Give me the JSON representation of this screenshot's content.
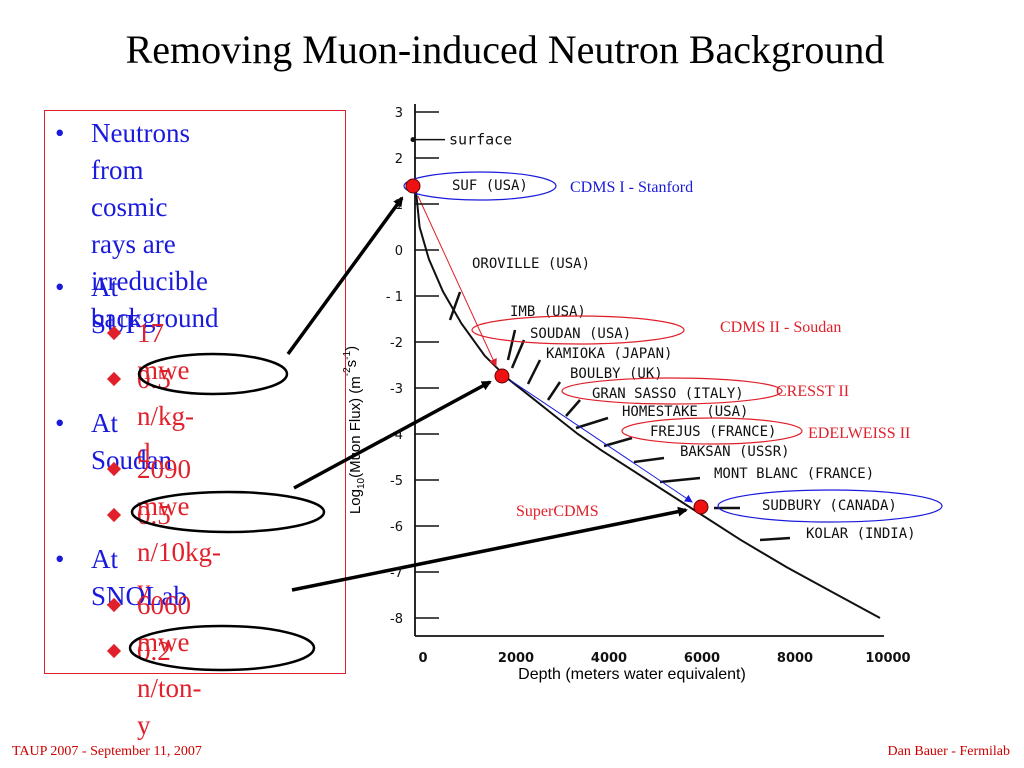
{
  "slide": {
    "title": "Removing Muon-induced Neutron Background",
    "footer_left": "TAUP 2007 - September 11, 2007",
    "footer_right": "Dan Bauer - Fermilab"
  },
  "bullets": [
    {
      "level": 1,
      "text": "Neutrons from\ncosmic rays are\nirreducible\nbackground",
      "color": "#1a1adc"
    },
    {
      "level": 1,
      "text": "At SUF",
      "color": "#1a1adc"
    },
    {
      "level": 2,
      "text": "17 mwe",
      "color": "#e0202a"
    },
    {
      "level": 2,
      "text": "0.5 n/kg-d",
      "color": "#e0202a",
      "circled": true
    },
    {
      "level": 1,
      "text": "At Soudan",
      "color": "#1a1adc"
    },
    {
      "level": 2,
      "text": "2090 mwe",
      "color": "#e0202a"
    },
    {
      "level": 2,
      "text": "0.5 n/10kg-y",
      "color": "#e0202a",
      "circled": true
    },
    {
      "level": 1,
      "text": "At SNOLab",
      "color": "#1a1adc"
    },
    {
      "level": 2,
      "text": "6060 mwe",
      "color": "#e0202a"
    },
    {
      "level": 2,
      "text": "0.2 n/ton-y",
      "color": "#e0202a",
      "circled": true
    }
  ],
  "chart_data": {
    "type": "line",
    "xlabel": "Depth (meters water equivalent)",
    "ylabel": "Log10(Muon Flux) (m-2s-1)",
    "xlim": [
      0,
      10000
    ],
    "ylim": [
      -8,
      3
    ],
    "x_ticks": [
      "0",
      "2000",
      "4000",
      "6000",
      "8000",
      "10000"
    ],
    "y_ticks": [
      "3",
      "2",
      "1",
      "0",
      "- 1",
      "-2",
      "-3",
      "-4",
      "-5",
      "-6",
      "-7",
      "-8"
    ],
    "series": [
      {
        "x": [
          0,
          100,
          300,
          600,
          1000,
          1500,
          2000,
          2500,
          3000,
          3500,
          4000,
          5000,
          6000,
          7000,
          8000,
          9000,
          10000
        ],
        "y": [
          1.5,
          0.5,
          -0.2,
          -0.9,
          -1.6,
          -2.3,
          -2.8,
          -3.2,
          -3.6,
          -4.0,
          -4.35,
          -5.0,
          -5.65,
          -6.3,
          -6.9,
          -7.45,
          -8.0
        ]
      }
    ],
    "surface_label": "surface",
    "sites": [
      {
        "name": "SUF (USA)",
        "x": 0,
        "y": 1.5,
        "highlighted": true
      },
      {
        "name": "OROVILLE (USA)",
        "x": 900,
        "y": -0.9
      },
      {
        "name": "IMB (USA)",
        "x": 1600,
        "y": -2.0
      },
      {
        "name": "SOUDAN (USA)",
        "x": 2000,
        "y": -2.3,
        "highlighted": true
      },
      {
        "name": "KAMIOKA (JAPAN)",
        "x": 2400,
        "y": -2.6
      },
      {
        "name": "BOULBY (UK)",
        "x": 2800,
        "y": -3.0
      },
      {
        "name": "GRAN SASSO (ITALY)",
        "x": 3100,
        "y": -3.2,
        "highlighted": true
      },
      {
        "name": "HOMESTAKE (USA)",
        "x": 3500,
        "y": -3.8
      },
      {
        "name": "FREJUS (FRANCE)",
        "x": 4000,
        "y": -4.2,
        "highlighted": true
      },
      {
        "name": "BAKSAN (USSR)",
        "x": 4500,
        "y": -4.5
      },
      {
        "name": "MONT BLANC (FRANCE)",
        "x": 5000,
        "y": -4.9
      },
      {
        "name": "SUDBURY (CANADA)",
        "x": 6060,
        "y": -5.6,
        "highlighted": true
      },
      {
        "name": "KOLAR (INDIA)",
        "x": 7400,
        "y": -6.2
      }
    ],
    "markers": [
      {
        "x": 0,
        "y": 1.5
      },
      {
        "x": 2000,
        "y": -2.8
      },
      {
        "x": 6060,
        "y": -5.6
      }
    ],
    "annotations": [
      {
        "text": "CDMS I - Stanford",
        "color": "#1a1adc"
      },
      {
        "text": "CDMS II - Soudan",
        "color": "#e0202a"
      },
      {
        "text": "CRESST II",
        "color": "#e0202a"
      },
      {
        "text": "EDELWEISS II",
        "color": "#e0202a"
      },
      {
        "text": "SuperCDMS",
        "color": "#e0202a"
      }
    ]
  }
}
